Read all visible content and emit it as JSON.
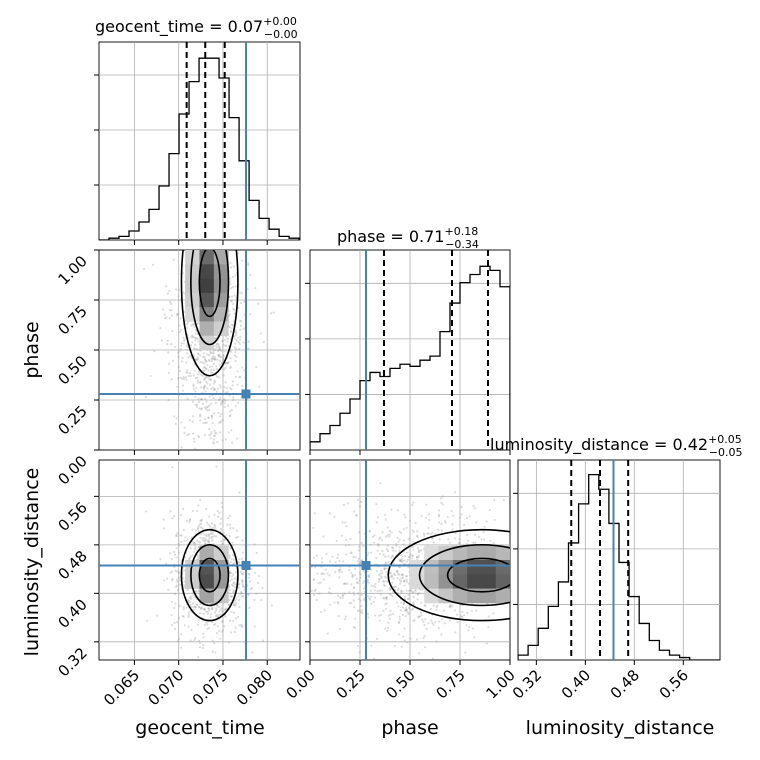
{
  "chart_data": {
    "type": "corner",
    "parameters": [
      "geocent_time",
      "phase",
      "luminosity_distance"
    ],
    "axis_labels": [
      "geocent_time",
      "phase",
      "luminosity_distance"
    ],
    "truths": [
      0.0776,
      0.28,
      0.446
    ],
    "truth_color": "#4682b4",
    "grid": true,
    "titles": [
      {
        "param": "geocent_time",
        "text": "geocent_time = 0.07",
        "sup": "+0.00",
        "sub": "−0.00"
      },
      {
        "param": "phase",
        "text": "phase = 0.71",
        "sup": "+0.18",
        "sub": "−0.34"
      },
      {
        "param": "luminosity_distance",
        "text": "luminosity_distance = 0.42",
        "sup": "+0.05",
        "sub": "−0.05"
      }
    ],
    "ranges": [
      [
        0.061,
        0.0837
      ],
      [
        0.0,
        1.0
      ],
      [
        0.29,
        0.62
      ]
    ],
    "ticks": [
      [
        "0.065",
        "0.070",
        "0.075",
        "0.080"
      ],
      [
        "0.00",
        "0.25",
        "0.50",
        "0.75",
        "1.00"
      ],
      [
        "0.32",
        "0.40",
        "0.48",
        "0.56"
      ]
    ],
    "tick_values": [
      [
        0.065,
        0.07,
        0.075,
        0.08
      ],
      [
        0.0,
        0.25,
        0.5,
        0.75,
        1.0
      ],
      [
        0.32,
        0.4,
        0.48,
        0.56
      ]
    ],
    "quantiles": [
      [
        0.0709,
        0.073,
        0.0752
      ],
      [
        0.37,
        0.71,
        0.89
      ],
      [
        0.377,
        0.424,
        0.47
      ]
    ],
    "histograms": [
      {
        "param": "geocent_time",
        "bin_edges_start": 0.061,
        "bin_width": 0.00113,
        "counts": [
          0,
          1,
          2,
          5,
          10,
          17,
          30,
          48,
          70,
          88,
          101,
          101,
          90,
          68,
          44,
          22,
          12,
          6,
          2,
          1
        ],
        "ymax": 110
      },
      {
        "param": "phase",
        "bin_edges_start": 0.0,
        "bin_width": 0.05,
        "counts": [
          4,
          8,
          12,
          18,
          25,
          34,
          38,
          36,
          40,
          42,
          41,
          44,
          46,
          58,
          72,
          82,
          86,
          90,
          88,
          80
        ],
        "ymax": 98
      },
      {
        "param": "luminosity_distance",
        "bin_edges_start": 0.29,
        "bin_width": 0.0165,
        "counts": [
          2,
          6,
          13,
          22,
          32,
          48,
          64,
          76,
          70,
          56,
          40,
          26,
          15,
          8,
          4,
          2,
          1,
          0,
          0,
          0
        ],
        "ymax": 82
      }
    ],
    "density_2d": [
      {
        "x": "geocent_time",
        "y": "phase",
        "mode": {
          "x": 0.0735,
          "y": 0.84
        },
        "spread": [
          0.0017,
          0.25
        ]
      },
      {
        "x": "geocent_time",
        "y": "luminosity_distance",
        "mode": {
          "x": 0.0735,
          "y": 0.43
        },
        "spread": [
          0.0017,
          0.04
        ]
      },
      {
        "x": "phase",
        "y": "luminosity_distance",
        "mode": {
          "x": 0.86,
          "y": 0.43
        },
        "spread": [
          0.25,
          0.04
        ]
      }
    ]
  }
}
